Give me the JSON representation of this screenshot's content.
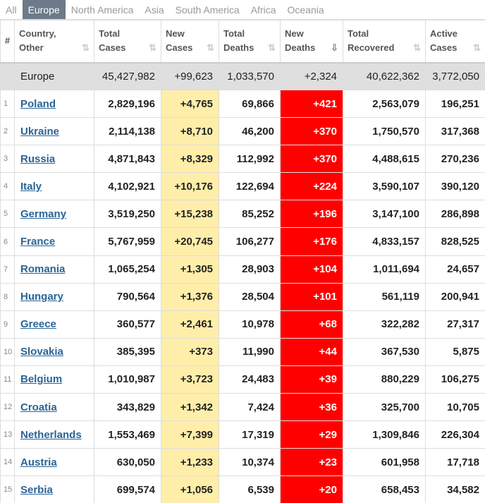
{
  "tabs": [
    "All",
    "Europe",
    "North America",
    "Asia",
    "South America",
    "Africa",
    "Oceania"
  ],
  "active_tab": "Europe",
  "headers": {
    "idx": "#",
    "country": "Country,\nOther",
    "total_cases": "Total\nCases",
    "new_cases": "New\nCases",
    "total_deaths": "Total\nDeaths",
    "new_deaths": "New\nDeaths",
    "total_recovered": "Total\nRecovered",
    "active_cases": "Active\nCases"
  },
  "total_row": {
    "country": "Europe",
    "total_cases": "45,427,982",
    "new_cases": "+99,623",
    "total_deaths": "1,033,570",
    "new_deaths": "+2,324",
    "total_recovered": "40,622,362",
    "active_cases": "3,772,050"
  },
  "rows": [
    {
      "idx": "1",
      "country": "Poland",
      "total_cases": "2,829,196",
      "new_cases": "+4,765",
      "total_deaths": "69,866",
      "new_deaths": "+421",
      "total_recovered": "2,563,079",
      "active_cases": "196,251"
    },
    {
      "idx": "2",
      "country": "Ukraine",
      "total_cases": "2,114,138",
      "new_cases": "+8,710",
      "total_deaths": "46,200",
      "new_deaths": "+370",
      "total_recovered": "1,750,570",
      "active_cases": "317,368"
    },
    {
      "idx": "3",
      "country": "Russia",
      "total_cases": "4,871,843",
      "new_cases": "+8,329",
      "total_deaths": "112,992",
      "new_deaths": "+370",
      "total_recovered": "4,488,615",
      "active_cases": "270,236"
    },
    {
      "idx": "4",
      "country": "Italy",
      "total_cases": "4,102,921",
      "new_cases": "+10,176",
      "total_deaths": "122,694",
      "new_deaths": "+224",
      "total_recovered": "3,590,107",
      "active_cases": "390,120"
    },
    {
      "idx": "5",
      "country": "Germany",
      "total_cases": "3,519,250",
      "new_cases": "+15,238",
      "total_deaths": "85,252",
      "new_deaths": "+196",
      "total_recovered": "3,147,100",
      "active_cases": "286,898"
    },
    {
      "idx": "6",
      "country": "France",
      "total_cases": "5,767,959",
      "new_cases": "+20,745",
      "total_deaths": "106,277",
      "new_deaths": "+176",
      "total_recovered": "4,833,157",
      "active_cases": "828,525"
    },
    {
      "idx": "7",
      "country": "Romania",
      "total_cases": "1,065,254",
      "new_cases": "+1,305",
      "total_deaths": "28,903",
      "new_deaths": "+104",
      "total_recovered": "1,011,694",
      "active_cases": "24,657"
    },
    {
      "idx": "8",
      "country": "Hungary",
      "total_cases": "790,564",
      "new_cases": "+1,376",
      "total_deaths": "28,504",
      "new_deaths": "+101",
      "total_recovered": "561,119",
      "active_cases": "200,941"
    },
    {
      "idx": "9",
      "country": "Greece",
      "total_cases": "360,577",
      "new_cases": "+2,461",
      "total_deaths": "10,978",
      "new_deaths": "+68",
      "total_recovered": "322,282",
      "active_cases": "27,317"
    },
    {
      "idx": "10",
      "country": "Slovakia",
      "total_cases": "385,395",
      "new_cases": "+373",
      "total_deaths": "11,990",
      "new_deaths": "+44",
      "total_recovered": "367,530",
      "active_cases": "5,875"
    },
    {
      "idx": "11",
      "country": "Belgium",
      "total_cases": "1,010,987",
      "new_cases": "+3,723",
      "total_deaths": "24,483",
      "new_deaths": "+39",
      "total_recovered": "880,229",
      "active_cases": "106,275"
    },
    {
      "idx": "12",
      "country": "Croatia",
      "total_cases": "343,829",
      "new_cases": "+1,342",
      "total_deaths": "7,424",
      "new_deaths": "+36",
      "total_recovered": "325,700",
      "active_cases": "10,705"
    },
    {
      "idx": "13",
      "country": "Netherlands",
      "total_cases": "1,553,469",
      "new_cases": "+7,399",
      "total_deaths": "17,319",
      "new_deaths": "+29",
      "total_recovered": "1,309,846",
      "active_cases": "226,304"
    },
    {
      "idx": "14",
      "country": "Austria",
      "total_cases": "630,050",
      "new_cases": "+1,233",
      "total_deaths": "10,374",
      "new_deaths": "+23",
      "total_recovered": "601,958",
      "active_cases": "17,718"
    },
    {
      "idx": "15",
      "country": "Serbia",
      "total_cases": "699,574",
      "new_cases": "+1,056",
      "total_deaths": "6,539",
      "new_deaths": "+20",
      "total_recovered": "658,453",
      "active_cases": "34,582"
    }
  ],
  "colors": {
    "active_tab_bg": "#6c7a89",
    "new_cases_bg": "#ffeeaa",
    "new_deaths_bg": "#ff0000",
    "link": "#2a6496",
    "total_row_bg": "#dfdfdf"
  },
  "icons": {
    "sort": "sort-arrows-icon",
    "sorted_desc": "sort-desc-icon"
  }
}
